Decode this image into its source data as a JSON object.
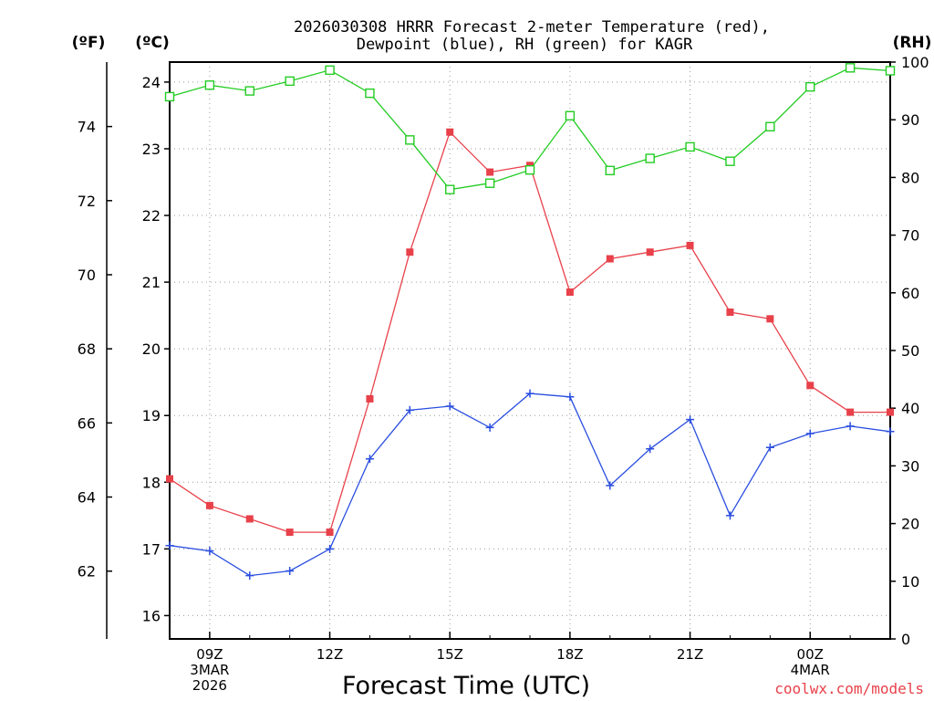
{
  "chart_data": {
    "type": "line",
    "title_line1": "2026030308 HRRR Forecast 2-meter Temperature (red),",
    "title_line2": "Dewpoint (blue), RH (green) for KAGR",
    "unit_f": "(ºF)",
    "unit_c": "(ºC)",
    "unit_rh": "(RH)",
    "xlabel": "Forecast Time (UTC)",
    "credit": "coolwx.com/models",
    "hours": [
      8,
      9,
      10,
      11,
      12,
      13,
      14,
      15,
      16,
      17,
      18,
      19,
      20,
      21,
      22,
      23,
      24,
      25,
      26
    ],
    "xlim": [
      8,
      26
    ],
    "x_ticks": [
      {
        "hour": 9,
        "lines": [
          "09Z",
          "3MAR",
          "2026"
        ]
      },
      {
        "hour": 12,
        "lines": [
          "12Z"
        ]
      },
      {
        "hour": 15,
        "lines": [
          "15Z"
        ]
      },
      {
        "hour": 18,
        "lines": [
          "18Z"
        ]
      },
      {
        "hour": 21,
        "lines": [
          "21Z"
        ]
      },
      {
        "hour": 24,
        "lines": [
          "00Z",
          "4MAR"
        ]
      }
    ],
    "c_axis": {
      "ylim": [
        15.65,
        24.3
      ],
      "ticks": [
        "16",
        "17",
        "18",
        "19",
        "20",
        "21",
        "22",
        "23",
        "24"
      ]
    },
    "f_axis": {
      "ticks": [
        "62",
        "64",
        "66",
        "68",
        "70",
        "72",
        "74"
      ]
    },
    "rh_axis": {
      "ylim": [
        0,
        100
      ],
      "ticks": [
        "0",
        "10",
        "20",
        "30",
        "40",
        "50",
        "60",
        "70",
        "80",
        "90",
        "100"
      ]
    },
    "series": [
      {
        "name": "2-meter Temperature",
        "units": "C",
        "color": "#e8414a",
        "marker": "filled-square",
        "values": [
          18.05,
          17.65,
          17.45,
          17.25,
          17.25,
          19.25,
          21.45,
          23.25,
          22.65,
          22.75,
          20.85,
          21.35,
          21.45,
          21.55,
          20.55,
          20.45,
          19.45,
          19.05,
          19.05
        ]
      },
      {
        "name": "Dewpoint",
        "units": "C",
        "color": "#2a4ee0",
        "marker": "plus",
        "values": [
          17.05,
          16.97,
          16.6,
          16.67,
          17.0,
          18.35,
          19.08,
          19.14,
          18.82,
          19.33,
          19.28,
          17.95,
          18.5,
          18.94,
          17.5,
          18.52,
          18.73,
          18.84,
          18.76
        ]
      },
      {
        "name": "RH",
        "units": "%",
        "color": "#22cc22",
        "marker": "open-square",
        "values": [
          94.0,
          96.0,
          95.0,
          96.7,
          98.6,
          94.6,
          86.5,
          77.9,
          79.0,
          81.3,
          90.7,
          81.2,
          83.3,
          85.3,
          82.8,
          88.8,
          95.7,
          99.0,
          98.5
        ]
      }
    ]
  }
}
